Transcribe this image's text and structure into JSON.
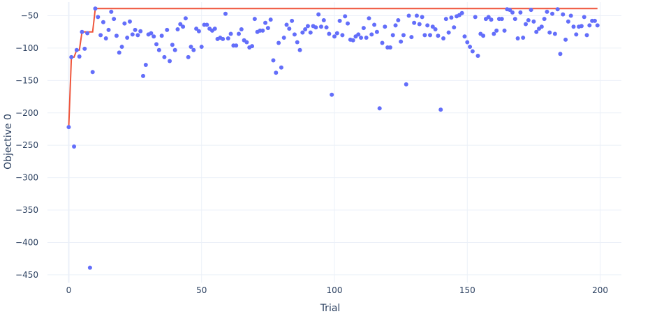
{
  "chart_data": {
    "type": "scatter",
    "xlabel": "Trial",
    "ylabel": "Objective 0",
    "xlim": [
      -8,
      208
    ],
    "ylim": [
      -462,
      -29
    ],
    "xticks": [
      0,
      50,
      100,
      150,
      200
    ],
    "yticks": [
      -50,
      -100,
      -150,
      -200,
      -250,
      -300,
      -350,
      -400,
      -450
    ],
    "grid": true,
    "legend": "none",
    "colors": {
      "points": "#636efa",
      "best_line": "#ef553b",
      "grid": "#ebf0f8",
      "zeroline": "#ebf0f8"
    },
    "series": [
      {
        "mode": "markers",
        "x": [
          0,
          1,
          2,
          3,
          4,
          5,
          6,
          7,
          8,
          9,
          10,
          11,
          12,
          13,
          14,
          15,
          16,
          17,
          18,
          19,
          20,
          21,
          22,
          23,
          24,
          25,
          26,
          27,
          28,
          29,
          30,
          31,
          32,
          33,
          34,
          35,
          36,
          37,
          38,
          39,
          40,
          41,
          42,
          43,
          44,
          45,
          46,
          47,
          48,
          49,
          50,
          51,
          52,
          53,
          54,
          55,
          56,
          57,
          58,
          59,
          60,
          61,
          62,
          63,
          64,
          65,
          66,
          67,
          68,
          69,
          70,
          71,
          72,
          73,
          74,
          75,
          76,
          77,
          78,
          79,
          80,
          81,
          82,
          83,
          84,
          85,
          86,
          87,
          88,
          89,
          90,
          91,
          92,
          93,
          94,
          95,
          96,
          97,
          98,
          99,
          100,
          101,
          102,
          103,
          104,
          105,
          106,
          107,
          108,
          109,
          110,
          111,
          112,
          113,
          114,
          115,
          116,
          117,
          118,
          119,
          120,
          121,
          122,
          123,
          124,
          125,
          126,
          127,
          128,
          129,
          130,
          131,
          132,
          133,
          134,
          135,
          136,
          137,
          138,
          139,
          140,
          141,
          142,
          143,
          144,
          145,
          146,
          147,
          148,
          149,
          150,
          151,
          152,
          153,
          154,
          155,
          156,
          157,
          158,
          159,
          160,
          161,
          162,
          163,
          164,
          165,
          166,
          167,
          168,
          169,
          170,
          171,
          172,
          173,
          174,
          175,
          176,
          177,
          178,
          179,
          180,
          181,
          182,
          183,
          184,
          185,
          186,
          187,
          188,
          189,
          190,
          191,
          192,
          193,
          194,
          195,
          196,
          197,
          198,
          199
        ],
        "y": [
          -222,
          -114,
          -252,
          -103,
          -113,
          -75,
          -101,
          -77,
          -439,
          -137,
          -39,
          -52,
          -80,
          -60,
          -85,
          -72,
          -44,
          -55,
          -81,
          -107,
          -98,
          -62,
          -84,
          -59,
          -79,
          -72,
          -80,
          -74,
          -143,
          -126,
          -79,
          -77,
          -82,
          -94,
          -103,
          -81,
          -114,
          -72,
          -120,
          -95,
          -103,
          -71,
          -63,
          -67,
          -54,
          -114,
          -98,
          -103,
          -70,
          -74,
          -98,
          -64,
          -64,
          -70,
          -73,
          -70,
          -86,
          -84,
          -86,
          -47,
          -85,
          -78,
          -96,
          -96,
          -78,
          -71,
          -88,
          -91,
          -99,
          -97,
          -55,
          -75,
          -73,
          -73,
          -61,
          -69,
          -56,
          -119,
          -138,
          -92,
          -130,
          -84,
          -64,
          -70,
          -58,
          -79,
          -91,
          -103,
          -76,
          -71,
          -66,
          -76,
          -66,
          -68,
          -48,
          -67,
          -57,
          -68,
          -78,
          -172,
          -82,
          -77,
          -58,
          -80,
          -51,
          -62,
          -87,
          -88,
          -82,
          -79,
          -84,
          -69,
          -84,
          -54,
          -79,
          -64,
          -75,
          -193,
          -92,
          -67,
          -99,
          -99,
          -80,
          -65,
          -57,
          -90,
          -80,
          -156,
          -50,
          -83,
          -61,
          -50,
          -63,
          -52,
          -80,
          -65,
          -80,
          -67,
          -71,
          -81,
          -195,
          -85,
          -55,
          -76,
          -53,
          -68,
          -51,
          -49,
          -46,
          -82,
          -91,
          -98,
          -105,
          -52,
          -112,
          -78,
          -81,
          -55,
          -52,
          -56,
          -78,
          -73,
          -55,
          -55,
          -73,
          -40,
          -41,
          -45,
          -55,
          -85,
          -45,
          -84,
          -63,
          -57,
          -41,
          -59,
          -75,
          -70,
          -67,
          -55,
          -44,
          -76,
          -47,
          -78,
          -40,
          -109,
          -48,
          -87,
          -59,
          -50,
          -67,
          -79,
          -67,
          -66,
          -52,
          -80,
          -65,
          -58,
          -58,
          -65
        ]
      },
      {
        "mode": "lines",
        "x": [
          0,
          1,
          2,
          3,
          4,
          5,
          6,
          7,
          8,
          9,
          10,
          199
        ],
        "y": [
          -222,
          -114,
          -114,
          -103,
          -103,
          -75,
          -75,
          -75,
          -75,
          -75,
          -39,
          -39
        ]
      }
    ]
  }
}
